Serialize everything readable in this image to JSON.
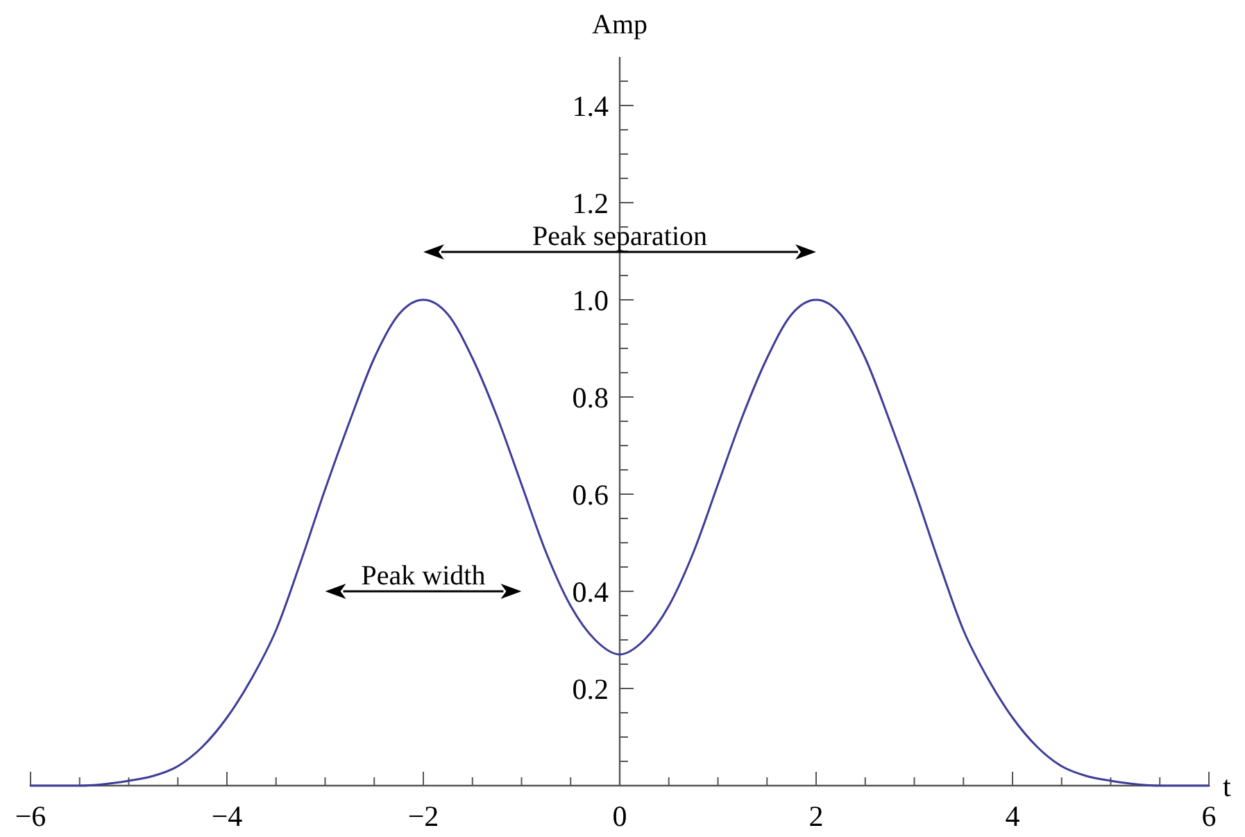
{
  "chart_data": {
    "type": "line",
    "xlabel": "t",
    "ylabel": "Amp",
    "x": [
      -6,
      -5.5,
      -5,
      -4.75,
      -4.5,
      -4.25,
      -4,
      -3.75,
      -3.5,
      -3.25,
      -3,
      -2.75,
      -2.5,
      -2.25,
      -2,
      -1.75,
      -1.5,
      -1.25,
      -1,
      -0.75,
      -0.5,
      -0.25,
      0,
      0.25,
      0.5,
      0.75,
      1,
      1.25,
      1.5,
      1.75,
      2,
      2.25,
      2.5,
      2.75,
      3,
      3.25,
      3.5,
      3.75,
      4,
      4.25,
      4.5,
      4.75,
      5,
      5.5,
      6
    ],
    "series": [
      {
        "color": "#3d3d99",
        "values": [
          0,
          0,
          0.01,
          0.02,
          0.04,
          0.08,
          0.14,
          0.22,
          0.32,
          0.46,
          0.61,
          0.75,
          0.88,
          0.97,
          1.0,
          0.97,
          0.88,
          0.76,
          0.62,
          0.48,
          0.37,
          0.3,
          0.27,
          0.3,
          0.37,
          0.48,
          0.62,
          0.76,
          0.88,
          0.97,
          1.0,
          0.97,
          0.88,
          0.75,
          0.61,
          0.46,
          0.32,
          0.22,
          0.14,
          0.08,
          0.04,
          0.02,
          0.01,
          0,
          0
        ]
      }
    ],
    "line_style": "solid",
    "xlim": [
      -6,
      6
    ],
    "ylim": [
      0,
      1.5
    ],
    "xticks": [
      {
        "value": -6,
        "label": "−6"
      },
      {
        "value": -5.5,
        "label": null
      },
      {
        "value": -5,
        "label": null
      },
      {
        "value": -4.5,
        "label": null
      },
      {
        "value": -4,
        "label": "−4"
      },
      {
        "value": -3.5,
        "label": null
      },
      {
        "value": -3,
        "label": null
      },
      {
        "value": -2.5,
        "label": null
      },
      {
        "value": -2,
        "label": "−2"
      },
      {
        "value": -1.5,
        "label": null
      },
      {
        "value": -1,
        "label": null
      },
      {
        "value": -0.5,
        "label": null
      },
      0,
      {
        "value": 0.5,
        "label": null
      },
      {
        "value": 1,
        "label": null
      },
      {
        "value": 1.5,
        "label": null
      },
      2,
      {
        "value": 2.5,
        "label": null
      },
      {
        "value": 3,
        "label": null
      },
      {
        "value": 3.5,
        "label": null
      },
      4,
      {
        "value": 4.5,
        "label": null
      },
      {
        "value": 5,
        "label": null
      },
      {
        "value": 5.5,
        "label": null
      },
      6
    ],
    "yticks": [
      {
        "value": 0.05,
        "label": null
      },
      {
        "value": 0.1,
        "label": null
      },
      {
        "value": 0.15,
        "label": null
      },
      0.2,
      {
        "value": 0.25,
        "label": null
      },
      {
        "value": 0.3,
        "label": null
      },
      {
        "value": 0.35,
        "label": null
      },
      0.4,
      {
        "value": 0.45,
        "label": null
      },
      {
        "value": 0.5,
        "label": null
      },
      {
        "value": 0.55,
        "label": null
      },
      0.6,
      {
        "value": 0.65,
        "label": null
      },
      {
        "value": 0.7,
        "label": null
      },
      {
        "value": 0.75,
        "label": null
      },
      0.8,
      {
        "value": 0.85,
        "label": null
      },
      {
        "value": 0.9,
        "label": null
      },
      {
        "value": 0.95,
        "label": null
      },
      {
        "value": 1,
        "label": "1.0"
      },
      {
        "value": 1.05,
        "label": null
      },
      {
        "value": 1.1,
        "label": null
      },
      {
        "value": 1.15,
        "label": null
      },
      1.2,
      {
        "value": 1.25,
        "label": null
      },
      {
        "value": 1.3,
        "label": null
      },
      {
        "value": 1.35,
        "label": null
      },
      1.4,
      {
        "value": 1.45,
        "label": null
      }
    ],
    "annotations": [
      "Peak separation",
      "Peak width"
    ]
  }
}
